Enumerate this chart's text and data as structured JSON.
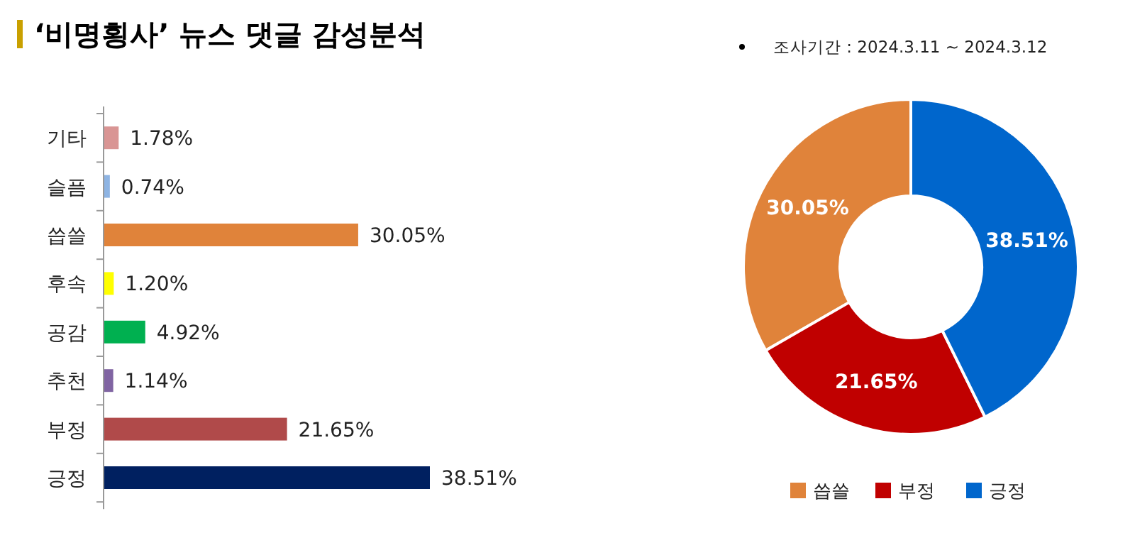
{
  "chart_data": [
    {
      "type": "bar",
      "orientation": "horizontal",
      "title": "‘비명횡사’ 뉴스 댓글 감성분석",
      "categories": [
        "기타",
        "슬픔",
        "씁쓸",
        "후속",
        "공감",
        "추천",
        "부정",
        "긍정"
      ],
      "values": [
        1.78,
        0.74,
        30.05,
        1.2,
        4.92,
        1.14,
        21.65,
        38.51
      ],
      "colors": [
        "#d99594",
        "#8eb4e3",
        "#e0833a",
        "#ffff00",
        "#00b050",
        "#8064a2",
        "#b04a4a",
        "#002060"
      ],
      "value_labels": [
        "1.78%",
        "0.74%",
        "30.05%",
        "1.20%",
        "4.92%",
        "1.14%",
        "21.65%",
        "38.51%"
      ]
    },
    {
      "type": "donut",
      "annotations": [
        "조사기간 : 2024.3.11 ~ 2024.3.12"
      ],
      "categories": [
        "씁쓸",
        "부정",
        "긍정"
      ],
      "values": [
        30.05,
        21.65,
        38.51
      ],
      "colors": [
        "#e0833a",
        "#c00000",
        "#0066cc"
      ],
      "value_labels": [
        "30.05%",
        "21.65%",
        "38.51%"
      ],
      "legend": "bottom"
    }
  ]
}
